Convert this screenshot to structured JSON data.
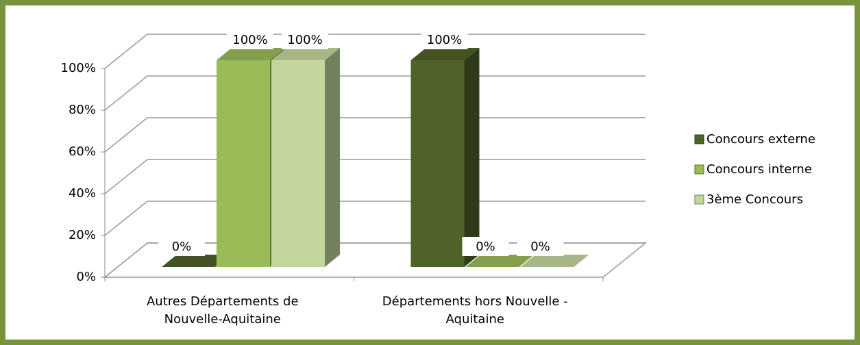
{
  "chart_data": {
    "type": "bar3d",
    "categories": [
      "Autres Départements de Nouvelle-Aquitaine",
      "Départements hors Nouvelle - Aquitaine"
    ],
    "series": [
      {
        "name": "Concours externe",
        "color": "#4f6228",
        "values": [
          0,
          100
        ],
        "value_labels": [
          "0%",
          "100%"
        ]
      },
      {
        "name": "Concours interne",
        "color": "#9bbb59",
        "values": [
          100,
          0
        ],
        "value_labels": [
          "100%",
          "0%"
        ]
      },
      {
        "name": "3ème Concours",
        "color": "#c3d69b",
        "values": [
          100,
          0
        ],
        "value_labels": [
          "100%",
          "0%"
        ]
      }
    ],
    "ylim": [
      0,
      100
    ],
    "yticks": [
      {
        "value": 0,
        "label": "0%"
      },
      {
        "value": 20,
        "label": "20%"
      },
      {
        "value": 40,
        "label": "40%"
      },
      {
        "value": 60,
        "label": "60%"
      },
      {
        "value": 80,
        "label": "80%"
      },
      {
        "value": 100,
        "label": "100%"
      }
    ],
    "grid": true,
    "legend": "right"
  }
}
